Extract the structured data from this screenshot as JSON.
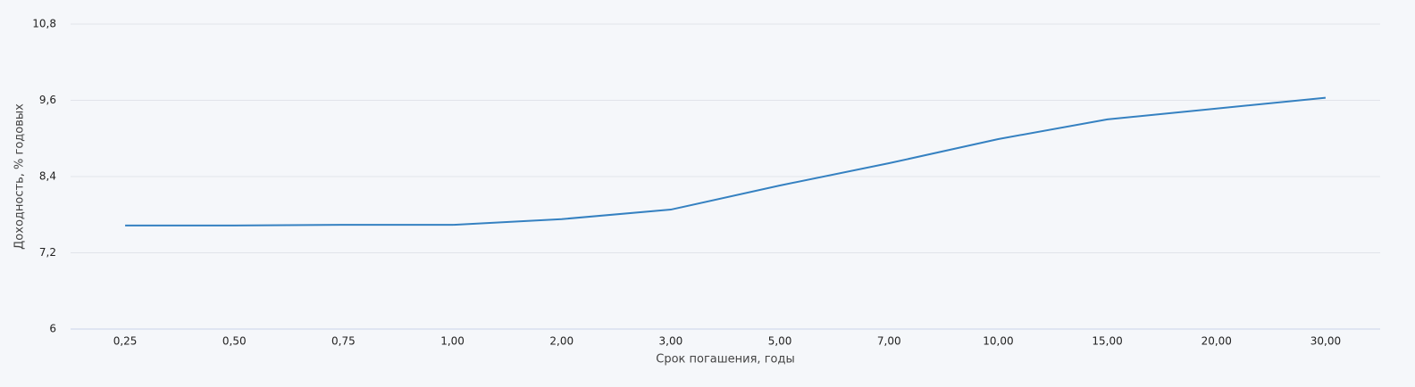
{
  "chart_data": {
    "type": "line",
    "x_label": "Срок погашения, годы",
    "y_label": "Доходность, % годовых",
    "categories": [
      "0,25",
      "0,50",
      "0,75",
      "1,00",
      "2,00",
      "3,00",
      "5,00",
      "7,00",
      "10,00",
      "15,00",
      "20,00",
      "30,00"
    ],
    "values": [
      7.63,
      7.63,
      7.64,
      7.64,
      7.73,
      7.88,
      8.26,
      8.61,
      8.99,
      9.3,
      9.47,
      9.64
    ],
    "color": "#3581c1",
    "ylim": [
      6,
      10.8
    ],
    "yticks": [
      6,
      {
        "value": 7.2,
        "label": "7,2"
      },
      {
        "value": 8.4,
        "label": "8,4"
      },
      {
        "value": 9.6,
        "label": "9,6"
      },
      {
        "value": 10.8,
        "label": "10,8"
      }
    ],
    "grid": true
  }
}
